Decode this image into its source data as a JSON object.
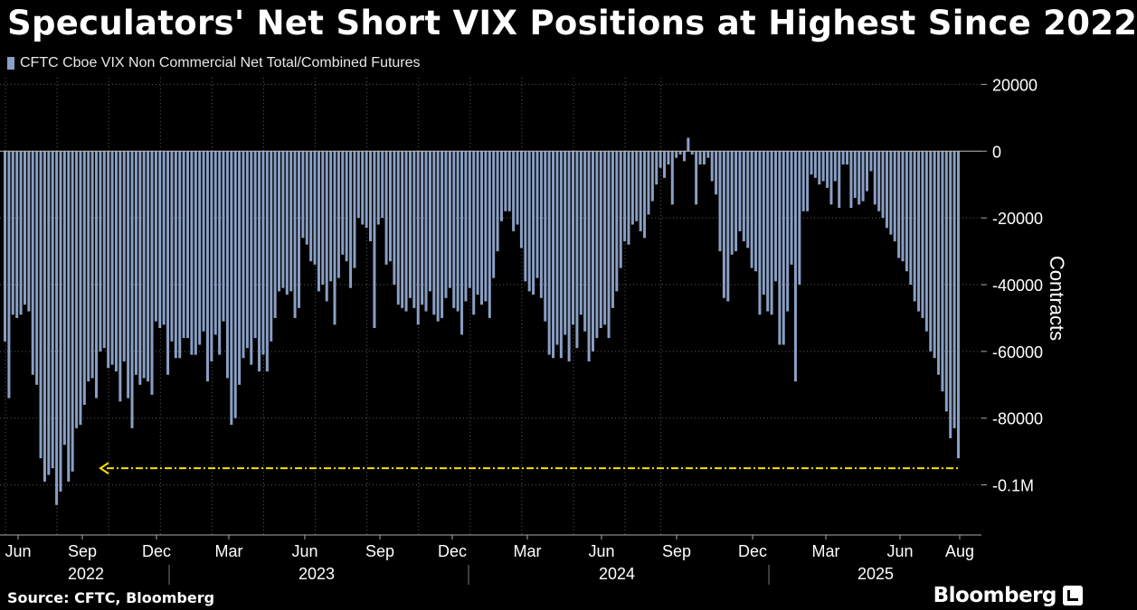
{
  "chart_data": {
    "type": "bar",
    "title": "Speculators' Net Short VIX Positions at Highest Since 2022",
    "ylabel": "Contracts",
    "ylim": [
      -115000,
      22000
    ],
    "yticks": [
      20000,
      0,
      -20000,
      -40000,
      -60000,
      -80000,
      -100000
    ],
    "ytick_labels": [
      "20000",
      "0",
      "-20000",
      "-40000",
      "-60000",
      "-80000",
      "-0.1M"
    ],
    "x_month_labels": [
      "Jun",
      "Sep",
      "Dec",
      "Mar",
      "Jun",
      "Sep",
      "Dec",
      "Mar",
      "Jun",
      "Sep",
      "Dec",
      "Mar",
      "Jun",
      "Aug"
    ],
    "x_year_labels": [
      "2022",
      "2023",
      "2024",
      "2025"
    ],
    "series": [
      {
        "name": "CFTC Cboe VIX Non Commercial Net Total/Combined Futures",
        "color": "#8a9fc4",
        "frequency": "weekly",
        "start": "2022-05-31",
        "values": [
          -57000,
          -74000,
          -49000,
          -50000,
          -49000,
          -46000,
          -48000,
          -67000,
          -70000,
          -92000,
          -99000,
          -97000,
          -95000,
          -106000,
          -102000,
          -88000,
          -99000,
          -96000,
          -83000,
          -82000,
          -76000,
          -69000,
          -68000,
          -74000,
          -60000,
          -59000,
          -65000,
          -64000,
          -66000,
          -75000,
          -63000,
          -74000,
          -83000,
          -67000,
          -70000,
          -68000,
          -69000,
          -73000,
          -51000,
          -53000,
          -52000,
          -67000,
          -57000,
          -62000,
          -62000,
          -56000,
          -56000,
          -61000,
          -61000,
          -58000,
          -54000,
          -69000,
          -63000,
          -55000,
          -61000,
          -51000,
          -68000,
          -82000,
          -80000,
          -70000,
          -62000,
          -59000,
          -64000,
          -56000,
          -66000,
          -61000,
          -66000,
          -57000,
          -50000,
          -42000,
          -41000,
          -43000,
          -42000,
          -50000,
          -47000,
          -26000,
          -28000,
          -33000,
          -34000,
          -42000,
          -40000,
          -45000,
          -39000,
          -52000,
          -38000,
          -31000,
          -33000,
          -41000,
          -35000,
          -20000,
          -22000,
          -23000,
          -27000,
          -53000,
          -22000,
          -20000,
          -34000,
          -33000,
          -40000,
          -46000,
          -47000,
          -48000,
          -44000,
          -47000,
          -52000,
          -46000,
          -48000,
          -42000,
          -49000,
          -51000,
          -50000,
          -44000,
          -41000,
          -47000,
          -48000,
          -55000,
          -45000,
          -41000,
          -49000,
          -43000,
          -46000,
          -45000,
          -50000,
          -38000,
          -30000,
          -21000,
          -18000,
          -18000,
          -24000,
          -22000,
          -29000,
          -39000,
          -42000,
          -43000,
          -38000,
          -44000,
          -51000,
          -61000,
          -62000,
          -58000,
          -62000,
          -55000,
          -63000,
          -52000,
          -59000,
          -49000,
          -54000,
          -63000,
          -60000,
          -56000,
          -53000,
          -52000,
          -56000,
          -47000,
          -42000,
          -35000,
          -27000,
          -28000,
          -22000,
          -21000,
          -24000,
          -26000,
          -19000,
          -15000,
          -10000,
          -5000,
          -8000,
          -4000,
          -16000,
          -2000,
          -1000,
          -3000,
          4000,
          -1000,
          -16000,
          -4000,
          -4000,
          -2000,
          -9000,
          -13000,
          -30000,
          -44000,
          -45000,
          -31000,
          -30000,
          -24000,
          -27000,
          -29000,
          -35000,
          -36000,
          -49000,
          -43000,
          -48000,
          -49000,
          -39000,
          -58000,
          -58000,
          -48000,
          -34000,
          -69000,
          -40000,
          -18000,
          -18000,
          -7000,
          -8000,
          -10000,
          -9000,
          -11000,
          -16000,
          -9000,
          -17000,
          -4000,
          -4000,
          -17000,
          -14000,
          -16000,
          -15000,
          -12000,
          -6000,
          -16000,
          -18000,
          -20000,
          -23000,
          -25000,
          -27000,
          -32000,
          -33000,
          -36000,
          -40000,
          -45000,
          -48000,
          -50000,
          -54000,
          -60000,
          -62000,
          -67000,
          -72000,
          -78000,
          -86000,
          -83000,
          -92000
        ]
      }
    ],
    "reference_line": {
      "value": -95000,
      "color": "#f5e000",
      "style": "dash-dot-arrow"
    },
    "grid": true,
    "legend_position": "top-left"
  },
  "source_label": "Source: CFTC, Bloomberg",
  "brand": "Bloomberg"
}
